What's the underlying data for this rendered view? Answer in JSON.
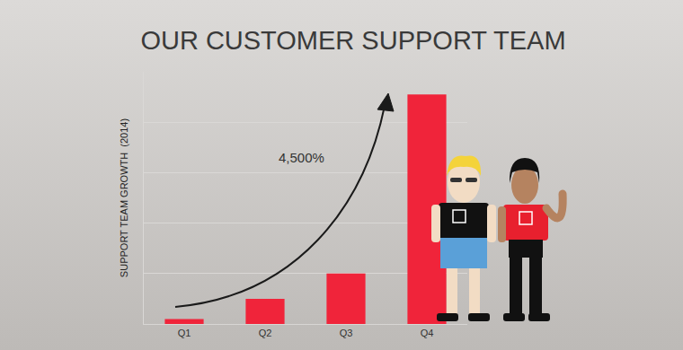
{
  "chart_data": {
    "type": "bar",
    "title": "OUR CUSTOMER SUPPORT TEAM",
    "y_label": "SUPPORT TEAM GROWTH  (2014)",
    "categories": [
      "Q1",
      "Q2",
      "Q3",
      "Q4"
    ],
    "values": [
      0.1,
      0.5,
      1.0,
      4.55
    ],
    "color": "#f0243a",
    "ylim": [
      0,
      5
    ],
    "yticks": [
      0,
      1,
      2,
      3,
      4,
      5
    ],
    "grid": true,
    "tick_labels": "x",
    "annotation": "4,500%"
  }
}
